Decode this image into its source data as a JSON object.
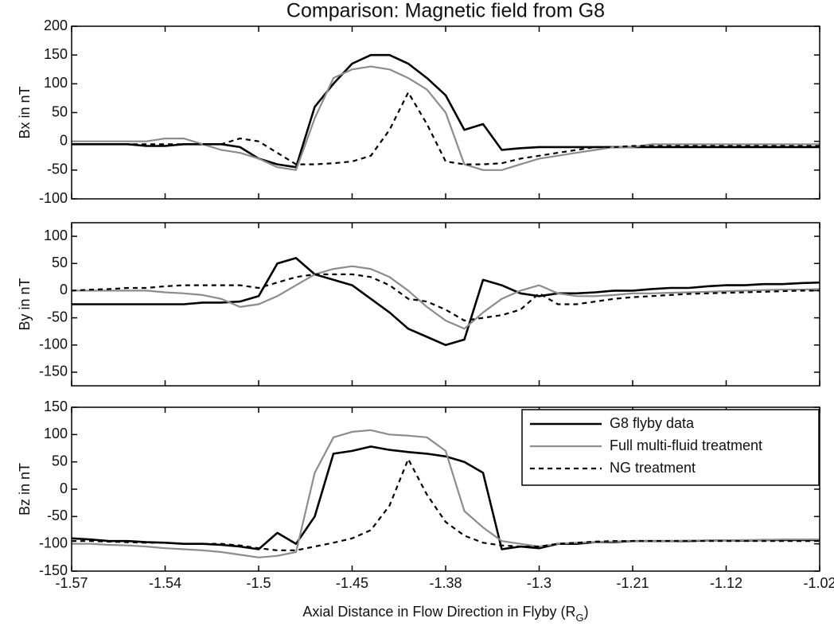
{
  "chart_data": [
    {
      "type": "line",
      "title": "Comparison: Magnetic field from G8",
      "ylabel": "Bx in nT",
      "x": [
        -1.57,
        -1.564,
        -1.558,
        -1.552,
        -1.546,
        -1.54,
        -1.532,
        -1.524,
        -1.516,
        -1.508,
        -1.5,
        -1.49,
        -1.48,
        -1.47,
        -1.46,
        -1.45,
        -1.436,
        -1.422,
        -1.408,
        -1.394,
        -1.38,
        -1.364,
        -1.348,
        -1.332,
        -1.316,
        -1.3,
        -1.282,
        -1.264,
        -1.246,
        -1.228,
        -1.21,
        -1.192,
        -1.174,
        -1.156,
        -1.138,
        -1.12,
        -1.1,
        -1.08,
        -1.06,
        -1.04,
        -1.02
      ],
      "xlim": [
        -1.57,
        -1.02
      ],
      "xticks": [
        -1.57,
        -1.54,
        -1.5,
        -1.45,
        -1.38,
        -1.3,
        -1.21,
        -1.12,
        -1.02
      ],
      "ylim": [
        -100,
        200
      ],
      "yticks": [
        -100,
        -50,
        0,
        50,
        100,
        150,
        200
      ],
      "series": [
        {
          "color": "#000000",
          "linestyle": "solid",
          "values": [
            -5,
            -5,
            -5,
            -5,
            -8,
            -8,
            -5,
            -5,
            -5,
            -10,
            -30,
            -40,
            -45,
            60,
            100,
            135,
            150,
            150,
            135,
            110,
            80,
            20,
            30,
            -15,
            -12,
            -10,
            -10,
            -10,
            -10,
            -10,
            -10,
            -10,
            -10,
            -10,
            -10,
            -10,
            -10,
            -10,
            -10,
            -10,
            -10
          ]
        },
        {
          "color": "#8c8c8c",
          "linestyle": "solid",
          "values": [
            0,
            0,
            0,
            0,
            0,
            5,
            5,
            -5,
            -15,
            -20,
            -30,
            -45,
            -50,
            40,
            110,
            125,
            130,
            125,
            110,
            90,
            50,
            -40,
            -50,
            -50,
            -40,
            -30,
            -25,
            -20,
            -15,
            -10,
            -10,
            -5,
            -5,
            -5,
            -5,
            -5,
            -5,
            -5,
            -5,
            -5,
            -5
          ]
        },
        {
          "color": "#000000",
          "linestyle": "dashed",
          "values": [
            -5,
            -5,
            -5,
            -5,
            -5,
            -5,
            -5,
            -5,
            -5,
            5,
            0,
            -20,
            -40,
            -40,
            -38,
            -35,
            -25,
            20,
            85,
            30,
            -35,
            -40,
            -40,
            -38,
            -30,
            -25,
            -20,
            -15,
            -10,
            -10,
            -8,
            -8,
            -8,
            -8,
            -8,
            -8,
            -8,
            -8,
            -8,
            -8,
            -8
          ]
        }
      ]
    },
    {
      "type": "line",
      "ylabel": "By in nT",
      "x": [
        -1.57,
        -1.564,
        -1.558,
        -1.552,
        -1.546,
        -1.54,
        -1.532,
        -1.524,
        -1.516,
        -1.508,
        -1.5,
        -1.49,
        -1.48,
        -1.47,
        -1.46,
        -1.45,
        -1.436,
        -1.422,
        -1.408,
        -1.394,
        -1.38,
        -1.364,
        -1.348,
        -1.332,
        -1.316,
        -1.3,
        -1.282,
        -1.264,
        -1.246,
        -1.228,
        -1.21,
        -1.192,
        -1.174,
        -1.156,
        -1.138,
        -1.12,
        -1.1,
        -1.08,
        -1.06,
        -1.04,
        -1.02
      ],
      "xlim": [
        -1.57,
        -1.02
      ],
      "xticks": [
        -1.57,
        -1.54,
        -1.5,
        -1.45,
        -1.38,
        -1.3,
        -1.21,
        -1.12,
        -1.02
      ],
      "ylim": [
        -175,
        125
      ],
      "yticks": [
        -150,
        -100,
        -50,
        0,
        50,
        100
      ],
      "series": [
        {
          "color": "#000000",
          "linestyle": "solid",
          "values": [
            -25,
            -25,
            -25,
            -25,
            -25,
            -25,
            -25,
            -22,
            -22,
            -20,
            -10,
            50,
            60,
            30,
            20,
            10,
            -15,
            -40,
            -70,
            -85,
            -100,
            -90,
            20,
            10,
            -5,
            -10,
            -5,
            -5,
            -3,
            0,
            0,
            3,
            5,
            5,
            8,
            10,
            10,
            12,
            12,
            14,
            15
          ]
        },
        {
          "color": "#8c8c8c",
          "linestyle": "solid",
          "values": [
            0,
            0,
            0,
            0,
            0,
            -3,
            -5,
            -8,
            -15,
            -30,
            -25,
            -10,
            10,
            30,
            40,
            45,
            40,
            25,
            0,
            -30,
            -55,
            -70,
            -40,
            -15,
            0,
            10,
            -5,
            -10,
            -10,
            -8,
            -5,
            -5,
            -4,
            -3,
            -2,
            -1,
            0,
            1,
            2,
            2,
            3
          ]
        },
        {
          "color": "#000000",
          "linestyle": "dashed",
          "values": [
            0,
            2,
            3,
            5,
            5,
            8,
            10,
            10,
            10,
            10,
            5,
            15,
            25,
            30,
            30,
            30,
            25,
            10,
            -15,
            -20,
            -35,
            -55,
            -50,
            -45,
            -35,
            -5,
            -25,
            -25,
            -20,
            -15,
            -12,
            -10,
            -8,
            -6,
            -5,
            -4,
            -3,
            -2,
            -1,
            0,
            0
          ]
        }
      ]
    },
    {
      "type": "line",
      "ylabel": "Bz in nT",
      "xlabel": [
        "Axial Distance in Flow Direction in Flyby (R",
        "G",
        ")"
      ],
      "x": [
        -1.57,
        -1.564,
        -1.558,
        -1.552,
        -1.546,
        -1.54,
        -1.532,
        -1.524,
        -1.516,
        -1.508,
        -1.5,
        -1.49,
        -1.48,
        -1.47,
        -1.46,
        -1.45,
        -1.436,
        -1.422,
        -1.408,
        -1.394,
        -1.38,
        -1.364,
        -1.348,
        -1.332,
        -1.316,
        -1.3,
        -1.282,
        -1.264,
        -1.246,
        -1.228,
        -1.21,
        -1.192,
        -1.174,
        -1.156,
        -1.138,
        -1.12,
        -1.1,
        -1.08,
        -1.06,
        -1.04,
        -1.02
      ],
      "xlim": [
        -1.57,
        -1.02
      ],
      "xticks": [
        -1.57,
        -1.54,
        -1.5,
        -1.45,
        -1.38,
        -1.3,
        -1.21,
        -1.12,
        -1.02
      ],
      "ylim": [
        -150,
        150
      ],
      "yticks": [
        -150,
        -100,
        -50,
        0,
        50,
        100,
        150
      ],
      "legend": "upper right",
      "series": [
        {
          "name": "G8 flyby data",
          "color": "#000000",
          "linestyle": "solid",
          "values": [
            -90,
            -92,
            -95,
            -95,
            -97,
            -98,
            -100,
            -100,
            -102,
            -105,
            -110,
            -80,
            -100,
            -50,
            65,
            70,
            78,
            72,
            68,
            65,
            60,
            50,
            30,
            -110,
            -105,
            -108,
            -100,
            -100,
            -97,
            -97,
            -95,
            -95,
            -95,
            -95,
            -94,
            -94,
            -94,
            -93,
            -93,
            -93,
            -93
          ]
        },
        {
          "name": "Full multi-fluid treatment",
          "color": "#8c8c8c",
          "linestyle": "solid",
          "values": [
            -100,
            -100,
            -102,
            -103,
            -105,
            -108,
            -110,
            -112,
            -115,
            -120,
            -125,
            -122,
            -115,
            30,
            95,
            105,
            108,
            100,
            98,
            95,
            70,
            -40,
            -70,
            -95,
            -100,
            -105,
            -100,
            -98,
            -97,
            -96,
            -95,
            -95,
            -95,
            -94,
            -94,
            -94,
            -93,
            -93,
            -92,
            -92,
            -92
          ]
        },
        {
          "name": "NG treatment",
          "color": "#000000",
          "linestyle": "dashed",
          "values": [
            -95,
            -95,
            -96,
            -97,
            -98,
            -98,
            -100,
            -100,
            -100,
            -103,
            -108,
            -112,
            -112,
            -105,
            -98,
            -90,
            -75,
            -30,
            55,
            -10,
            -60,
            -85,
            -98,
            -103,
            -105,
            -105,
            -100,
            -98,
            -96,
            -95,
            -95,
            -95,
            -95,
            -95,
            -95,
            -95,
            -95,
            -95,
            -95,
            -95,
            -95
          ]
        }
      ]
    }
  ]
}
